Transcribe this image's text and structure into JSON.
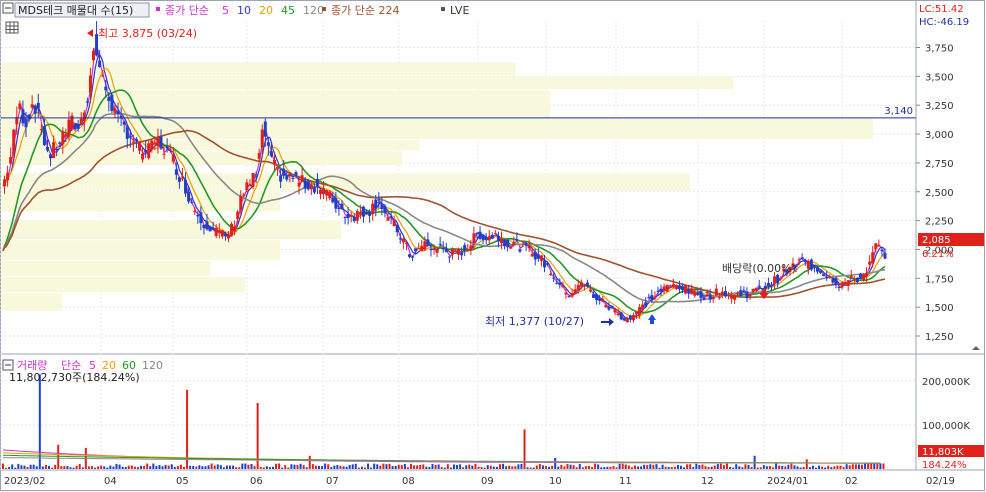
{
  "header": {
    "title": "MDS테크 매물대 수(15)",
    "ma_label": "종가 단순",
    "ma_periods": [
      "5",
      "10",
      "20",
      "45",
      "120"
    ],
    "ma_period_colors": [
      "#cc33cc",
      "#3333cc",
      "#e8a000",
      "#229922",
      "#888888"
    ],
    "long_ma_label": "종가 단순 224",
    "lve_label": "LVE",
    "lc": "LC:51.42",
    "hc": "HC:-46.19"
  },
  "volume_header": {
    "title": "거래량",
    "ma_label": "단순",
    "ma_periods": [
      "5",
      "20",
      "60",
      "120"
    ],
    "ma_period_colors": [
      "#cc33cc",
      "#e8a000",
      "#229922",
      "#888888"
    ],
    "last_value": "11,802,730주(184.24%)"
  },
  "chart_data": [
    {
      "type": "candlestick",
      "title": "MDS테크 매물대 수(15)",
      "y_axis": {
        "ticks": [
          1250,
          1500,
          1750,
          2000,
          2250,
          2500,
          2750,
          3000,
          3250,
          3500,
          3750
        ],
        "tick_labels": [
          "1,250",
          "1,500",
          "1,750",
          "2,000",
          "2,250",
          "2,500",
          "2,750",
          "3,000",
          "3,250",
          "3,500",
          "3,750"
        ],
        "range": [
          1150,
          3920
        ]
      },
      "x_axis": {
        "tick_labels": [
          "2023/02",
          "04",
          "05",
          "06",
          "07",
          "08",
          "09",
          "10",
          "11",
          "12",
          "2024/01",
          "02",
          "02/19"
        ]
      },
      "annotations": {
        "high": {
          "text": "최고 3,875 (03/24)",
          "value": 3875
        },
        "low": {
          "text": "최저 1,377 (10/27)",
          "value": 1377
        },
        "dividend": {
          "text": "배당락(0.00%)"
        },
        "horizontal_line": {
          "text": "3,140",
          "value": 3140
        },
        "current_price": {
          "text": "2,085",
          "value": 2085
        },
        "current_change": {
          "text": "6.21%"
        }
      },
      "price_path": [
        [
          0,
          2550
        ],
        [
          5,
          2800
        ],
        [
          10,
          3250
        ],
        [
          15,
          3100
        ],
        [
          20,
          3300
        ],
        [
          25,
          3050
        ],
        [
          30,
          2800
        ],
        [
          35,
          2900
        ],
        [
          40,
          3000
        ],
        [
          45,
          3100
        ],
        [
          50,
          3050
        ],
        [
          55,
          3350
        ],
        [
          60,
          3780
        ],
        [
          65,
          3450
        ],
        [
          70,
          3300
        ],
        [
          75,
          3100
        ],
        [
          80,
          3050
        ],
        [
          85,
          2950
        ],
        [
          90,
          2850
        ],
        [
          95,
          2850
        ],
        [
          100,
          2950
        ],
        [
          105,
          2880
        ],
        [
          110,
          2800
        ],
        [
          115,
          2650
        ],
        [
          120,
          2500
        ],
        [
          125,
          2350
        ],
        [
          130,
          2250
        ],
        [
          135,
          2200
        ],
        [
          140,
          2150
        ],
        [
          145,
          2100
        ],
        [
          150,
          2200
        ],
        [
          155,
          2450
        ],
        [
          160,
          2550
        ],
        [
          165,
          2650
        ],
        [
          170,
          3050
        ],
        [
          175,
          2750
        ],
        [
          180,
          2650
        ],
        [
          185,
          2620
        ],
        [
          190,
          2620
        ],
        [
          195,
          2580
        ],
        [
          200,
          2560
        ],
        [
          205,
          2550
        ],
        [
          210,
          2500
        ],
        [
          215,
          2420
        ],
        [
          220,
          2350
        ],
        [
          225,
          2300
        ],
        [
          230,
          2300
        ],
        [
          235,
          2330
        ],
        [
          240,
          2350
        ],
        [
          245,
          2450
        ],
        [
          250,
          2280
        ],
        [
          255,
          2200
        ],
        [
          260,
          2100
        ],
        [
          265,
          1950
        ],
        [
          270,
          1980
        ],
        [
          275,
          2050
        ],
        [
          280,
          2000
        ],
        [
          285,
          2020
        ],
        [
          290,
          1980
        ],
        [
          295,
          1950
        ],
        [
          300,
          2000
        ],
        [
          305,
          2050
        ],
        [
          310,
          2150
        ],
        [
          315,
          2100
        ],
        [
          320,
          2130
        ],
        [
          325,
          2100
        ],
        [
          330,
          2050
        ],
        [
          335,
          2040
        ],
        [
          340,
          2020
        ],
        [
          345,
          1980
        ],
        [
          350,
          1920
        ],
        [
          355,
          1850
        ],
        [
          360,
          1750
        ],
        [
          365,
          1650
        ],
        [
          370,
          1620
        ],
        [
          375,
          1700
        ],
        [
          380,
          1680
        ],
        [
          385,
          1600
        ],
        [
          390,
          1550
        ],
        [
          395,
          1500
        ],
        [
          400,
          1460
        ],
        [
          405,
          1400
        ],
        [
          410,
          1420
        ],
        [
          415,
          1480
        ],
        [
          420,
          1550
        ],
        [
          425,
          1600
        ],
        [
          430,
          1650
        ],
        [
          435,
          1680
        ],
        [
          440,
          1700
        ],
        [
          445,
          1650
        ],
        [
          450,
          1620
        ],
        [
          455,
          1610
        ],
        [
          460,
          1600
        ],
        [
          465,
          1620
        ],
        [
          470,
          1630
        ],
        [
          475,
          1600
        ],
        [
          480,
          1610
        ],
        [
          485,
          1620
        ],
        [
          490,
          1640
        ],
        [
          495,
          1660
        ],
        [
          500,
          1700
        ],
        [
          505,
          1750
        ],
        [
          510,
          1800
        ],
        [
          515,
          1850
        ],
        [
          520,
          1900
        ],
        [
          525,
          1870
        ],
        [
          530,
          1850
        ],
        [
          535,
          1800
        ],
        [
          540,
          1760
        ],
        [
          545,
          1700
        ],
        [
          550,
          1720
        ],
        [
          555,
          1740
        ],
        [
          560,
          1760
        ],
        [
          565,
          1880
        ],
        [
          570,
          2050
        ],
        [
          575,
          1900
        ]
      ],
      "moving_averages": [
        {
          "name": "5",
          "color": "#cc33cc",
          "smoothing": 3
        },
        {
          "name": "10",
          "color": "#3333cc",
          "smoothing": 6
        },
        {
          "name": "20",
          "color": "#e8a000",
          "smoothing": 12
        },
        {
          "name": "45",
          "color": "#229922",
          "smoothing": 26
        },
        {
          "name": "120",
          "color": "#888888",
          "smoothing": 60
        },
        {
          "name": "224",
          "color": "#a0522d",
          "smoothing": 120
        }
      ],
      "volume_profile": [
        {
          "price_low": 3500,
          "price_high": 3620,
          "volume": 0.59
        },
        {
          "price_low": 3380,
          "price_high": 3500,
          "volume": 0.84
        },
        {
          "price_low": 3140,
          "price_high": 3380,
          "volume": 0.63
        },
        {
          "price_low": 2950,
          "price_high": 3140,
          "volume": 1.0
        },
        {
          "price_low": 2850,
          "price_high": 2950,
          "volume": 0.48
        },
        {
          "price_low": 2720,
          "price_high": 2850,
          "volume": 0.46
        },
        {
          "price_low": 2500,
          "price_high": 2660,
          "volume": 0.79
        },
        {
          "price_low": 2320,
          "price_high": 2500,
          "volume": 0.32
        },
        {
          "price_low": 2080,
          "price_high": 2250,
          "volume": 0.39
        },
        {
          "price_low": 1900,
          "price_high": 2080,
          "volume": 0.32
        },
        {
          "price_low": 1760,
          "price_high": 1900,
          "volume": 0.24
        },
        {
          "price_low": 1620,
          "price_high": 1760,
          "volume": 0.28
        },
        {
          "price_low": 1460,
          "price_high": 1620,
          "volume": 0.07
        }
      ]
    },
    {
      "type": "bar",
      "title": "거래량",
      "y_axis": {
        "ticks": [
          100000,
          200000
        ],
        "tick_labels": [
          "100,000K",
          "200,000K"
        ],
        "range": [
          0,
          230000
        ]
      },
      "last_value_label": "11,803K",
      "last_change_label": "184.24%",
      "spikes": [
        {
          "index": 12,
          "value": 215000
        },
        {
          "index": 18,
          "value": 55000
        },
        {
          "index": 27,
          "value": 48000
        },
        {
          "index": 60,
          "value": 180000
        },
        {
          "index": 83,
          "value": 150000
        },
        {
          "index": 100,
          "value": 30000
        },
        {
          "index": 170,
          "value": 90000
        },
        {
          "index": 180,
          "value": 25000
        },
        {
          "index": 245,
          "value": 30000
        },
        {
          "index": 262,
          "value": 22000
        }
      ],
      "base_volume": 7000
    }
  ]
}
